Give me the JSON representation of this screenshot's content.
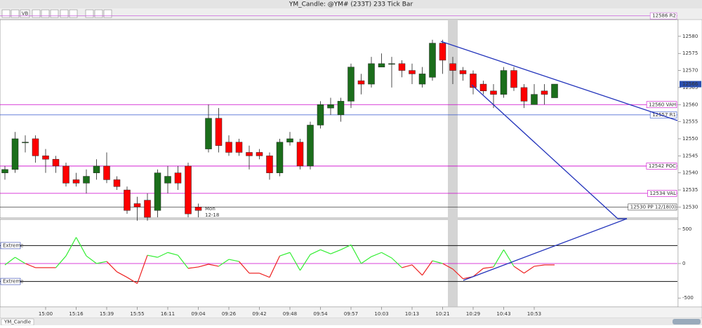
{
  "window": {
    "title": "YM_Candle: @YM# (233T) 233 Tick Bar",
    "toolbar_label": "VB",
    "tab": "YM_Candle"
  },
  "chart_data": [
    {
      "type": "candlestick",
      "categories": [
        null,
        null,
        null,
        null,
        "15:00",
        null,
        null,
        "15:16",
        null,
        null,
        "15:39",
        null,
        null,
        "15:55",
        null,
        null,
        "16:11",
        null,
        null,
        "09:04",
        null,
        null,
        "09:26",
        null,
        null,
        "09:42",
        null,
        null,
        "09:48",
        null,
        null,
        "09:54",
        null,
        null,
        "09:57",
        null,
        null,
        "10:03",
        null,
        null,
        "10:13",
        null,
        null,
        "10:21",
        null,
        null,
        "10:29",
        null,
        null,
        "10:43",
        null,
        null,
        "10:53",
        null,
        null
      ],
      "open": [
        12540,
        12541,
        12549,
        12550,
        12545,
        12544,
        12542,
        12538,
        12537,
        12540,
        12542,
        12538,
        12535,
        12531,
        12532,
        12529,
        12537,
        12540,
        12542,
        12530,
        12547,
        12556,
        12549,
        12549,
        12546,
        12546,
        12545,
        12540,
        12549,
        12549,
        12542,
        12554,
        12559,
        12557,
        12561,
        12567,
        12566,
        12571,
        12572,
        12572,
        12570,
        12566,
        12568,
        12578,
        12572,
        12570,
        12569,
        12566,
        12564,
        12563,
        12570,
        12565,
        12560,
        12564,
        12562
      ],
      "high": [
        12542,
        12552,
        12551,
        12551,
        12547,
        12545,
        12543,
        12540,
        12541,
        12544,
        12546,
        12539,
        12536,
        12533,
        12534,
        12541,
        12542,
        12542,
        12543,
        12531,
        12560,
        12559,
        12551,
        12550,
        12548,
        12547,
        12546,
        12550,
        12552,
        12550,
        12555,
        12561,
        12562,
        12562,
        12572,
        12569,
        12574,
        12575,
        12574,
        12573,
        12572,
        12571,
        12579,
        12579,
        12574,
        12571,
        12570,
        12567,
        12566,
        12571,
        12571,
        12566,
        12566,
        12566,
        12566
      ],
      "low": [
        12538,
        12540,
        12546,
        12543,
        12540,
        12540,
        12536,
        12536,
        12534,
        12538,
        12537,
        12535,
        12528,
        12526,
        12526,
        12527,
        12534,
        12535,
        12527,
        12527,
        12546,
        12546,
        12545,
        12545,
        12541,
        12544,
        12538,
        12539,
        12548,
        12541,
        12541,
        12553,
        12557,
        12555,
        12559,
        12563,
        12565,
        12571,
        12565,
        12568,
        12566,
        12565,
        12567,
        12569,
        12566,
        12567,
        12563,
        12563,
        12559,
        12562,
        12564,
        12559,
        12560,
        12560,
        12562
      ],
      "close": [
        12541,
        12550,
        12549,
        12545,
        12544,
        12542,
        12537,
        12537,
        12539,
        12542,
        12538,
        12536,
        12529,
        12530,
        12527,
        12540,
        12539,
        12537,
        12528,
        12529,
        12556,
        12548,
        12546,
        12546,
        12545,
        12545,
        12540,
        12549,
        12550,
        12542,
        12554,
        12560,
        12560,
        12561,
        12571,
        12566,
        12572,
        12572,
        12572,
        12570,
        12569,
        12569,
        12578,
        12573,
        12570,
        12569,
        12565,
        12564,
        12563,
        12570,
        12565,
        12561,
        12563,
        12563,
        12566
      ],
      "up_color": "#1b6e1b",
      "down_color": "#ff0000",
      "ylim": [
        12527,
        12581.2
      ],
      "yticks": [
        12530,
        12535,
        12540,
        12545,
        12550,
        12555,
        12560,
        12565,
        12570,
        12575,
        12580
      ],
      "levels": [
        {
          "value": 12586,
          "label": "12586 R2",
          "color": "#cc66dd"
        },
        {
          "value": 12560,
          "label": "12560 VAH",
          "color": "#cc00cc"
        },
        {
          "value": 12557,
          "label": "12557 R1",
          "color": "#3355cc"
        },
        {
          "value": 12542,
          "label": "12542 POC",
          "color": "#cc00cc"
        },
        {
          "value": 12534,
          "label": "12534 VAL",
          "color": "#cc00cc"
        },
        {
          "value": 12530,
          "label": "12530 PP 12/18(0)",
          "color": "#444444"
        }
      ],
      "last_price": 12566,
      "annotation": [
        "Mon",
        "12-18"
      ]
    },
    {
      "type": "line",
      "values": [
        -20,
        90,
        0,
        -60,
        -60,
        -60,
        110,
        380,
        110,
        0,
        30,
        -120,
        -200,
        -290,
        120,
        90,
        160,
        120,
        -70,
        -50,
        -10,
        -40,
        60,
        30,
        -140,
        -140,
        -200,
        110,
        160,
        -100,
        130,
        200,
        140,
        200,
        270,
        0,
        100,
        160,
        80,
        -60,
        -20,
        -170,
        40,
        0,
        -80,
        -220,
        -190,
        -70,
        -50,
        200,
        -40,
        -140,
        -40,
        -20,
        -20
      ],
      "pos_color": "#33ee33",
      "neg_color": "#ee2222",
      "ylim": [
        -630,
        630
      ],
      "yticks": [
        -500,
        0,
        500
      ],
      "extremes": [
        {
          "value": 260,
          "label": "Extreme"
        },
        {
          "value": -260,
          "label": "Extreme"
        }
      ]
    }
  ]
}
